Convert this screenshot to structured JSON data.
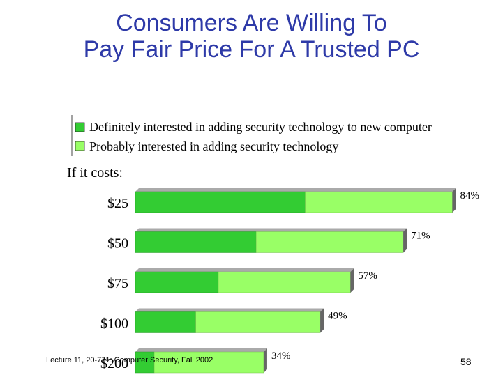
{
  "slide": {
    "title_line1": "Consumers Are Willing To",
    "title_line2": "Pay Fair Price For A Trusted PC",
    "footer": "Lecture 11, 20-771: Computer Security, Fall 2002",
    "page_number": "58"
  },
  "chart_data": {
    "type": "bar",
    "orientation": "horizontal",
    "stacked": true,
    "title": "",
    "xlabel": "",
    "ylabel": "If it costs:",
    "categories": [
      "$25",
      "$50",
      "$75",
      "$100",
      "$200"
    ],
    "series": [
      {
        "name": "Definitely interested in adding security technology to new computer",
        "values": [
          45,
          32,
          22,
          16,
          5
        ],
        "color": "#33cc33"
      },
      {
        "name": "Probably interested in adding security technology",
        "values": [
          39,
          39,
          35,
          33,
          29
        ],
        "color": "#99ff66"
      }
    ],
    "totals": [
      84,
      71,
      57,
      49,
      34
    ],
    "total_labels": [
      "84%",
      "71%",
      "57%",
      "49%",
      "34%"
    ],
    "xlim": [
      0,
      100
    ],
    "grid": false,
    "legend_position": "top",
    "style": "3d"
  }
}
